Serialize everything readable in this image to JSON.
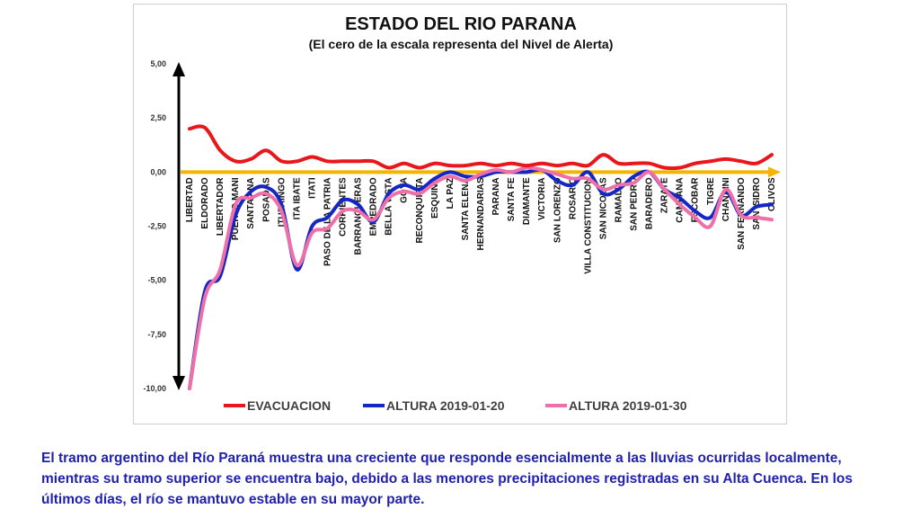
{
  "chart_data": {
    "type": "line",
    "title": "ESTADO DEL RIO PARANA",
    "subtitle": "(El cero de la escala representa del Nivel de Alerta)",
    "ylim": [
      -10,
      5
    ],
    "yticks": [
      "5,00",
      "2,50",
      "0,00",
      "-2,50",
      "-5,00",
      "-7,50",
      "-10,00"
    ],
    "ytick_values": [
      5,
      2.5,
      0,
      -2.5,
      -5,
      -7.5,
      -10
    ],
    "categories": [
      "LIBERTAD",
      "ELDORADO",
      "LIBERTADOR",
      "PUERTO MANI",
      "SANTA ANA",
      "POSADAS",
      "ITUZAINGO",
      "ITA IBATE",
      "ITATI",
      "PASO DE LA PATRIA",
      "CORRIENTES",
      "BARRANQUERAS",
      "BELLA VISTA",
      "EMPEDRADO",
      "GOYA",
      "RECONQUISTA",
      "ESQUINA",
      "LA PAZ",
      "SANTA ELENA",
      "HERNANDARIAS",
      "PARANA",
      "SANTA FE",
      "DIAMANTE",
      "VICTORIA",
      "SAN LORENZO",
      "ROSARIO",
      "VILLA CONSTITUCION",
      "SAN NICOLAS",
      "RAMALLO",
      "SAN PEDRO",
      "BARADERO",
      "ZARATE",
      "CAMPANA",
      "ESCOBAR",
      "TIGRE",
      "CHANAINI",
      "SAN FERNANDO",
      "SAN ISIDRO",
      "OLIVOS"
    ],
    "category_order": [
      0,
      1,
      2,
      3,
      4,
      5,
      6,
      7,
      8,
      9,
      10,
      11,
      13,
      12,
      14,
      15,
      16,
      17,
      18,
      19,
      20,
      21,
      22,
      23,
      24,
      25,
      26,
      27,
      28,
      29,
      30,
      31,
      32,
      33,
      34,
      35,
      36,
      37,
      38
    ],
    "series": [
      {
        "name": "EVACUACION",
        "color": "#e8171c",
        "values": [
          2.0,
          2.05,
          1.0,
          0.5,
          0.6,
          1.0,
          0.5,
          0.5,
          0.7,
          0.5,
          0.5,
          0.5,
          0.5,
          0.2,
          0.4,
          0.2,
          0.4,
          0.3,
          0.3,
          0.4,
          0.3,
          0.4,
          0.3,
          0.4,
          0.3,
          0.4,
          0.3,
          0.8,
          0.4,
          0.4,
          0.4,
          0.2,
          0.2,
          0.4,
          0.5,
          0.6,
          0.5,
          0.4,
          0.8
        ]
      },
      {
        "name": "ALTURA 2019-01-20",
        "color": "#1426c4",
        "values": [
          -10.0,
          -5.5,
          -4.8,
          -2.0,
          -0.9,
          -0.7,
          -1.5,
          -4.5,
          -2.5,
          -2.1,
          -1.3,
          -1.5,
          -2.3,
          -1.0,
          -0.6,
          -0.8,
          -0.3,
          0.0,
          -0.2,
          -0.2,
          0.0,
          0.0,
          0.0,
          0.1,
          -0.4,
          -0.6,
          0.0,
          -1.0,
          -0.8,
          -0.2,
          0.0,
          -0.8,
          -1.2,
          -1.8,
          -2.1,
          -0.9,
          -2.0,
          -1.6,
          -1.5
        ]
      },
      {
        "name": "ALTURA 2019-01-30",
        "color": "#ef6fa8",
        "values": [
          -10.0,
          -5.8,
          -4.5,
          -1.5,
          -1.2,
          -1.0,
          -1.8,
          -4.3,
          -2.8,
          -2.6,
          -1.8,
          -1.8,
          -2.2,
          -1.2,
          -0.9,
          -1.0,
          -0.5,
          -0.2,
          -0.4,
          -0.1,
          0.1,
          0.0,
          0.2,
          0.1,
          -0.1,
          -0.3,
          -0.3,
          -0.8,
          -0.6,
          -0.5,
          0.0,
          -0.8,
          -1.5,
          -2.1,
          -2.5,
          -0.8,
          -2.0,
          -2.1,
          -2.2
        ]
      }
    ],
    "legend_position": "bottom",
    "grid": false
  },
  "caption": "El tramo argentino del Río Paraná muestra una creciente que responde esencialmente a las lluvias ocurridas localmente, mientras su tramo superior se encuentra bajo, debido a las menores precipitaciones registradas en su Alta Cuenca.  En los últimos días, el río se mantuvo estable en su mayor parte.",
  "colors": {
    "zero_axis": "#f5b400",
    "axis_arrow": "#000000"
  }
}
